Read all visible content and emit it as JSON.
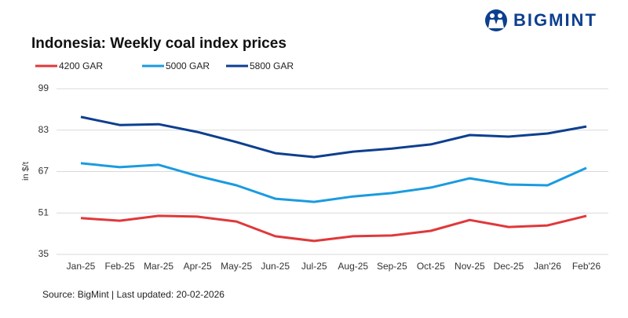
{
  "logo": "BIGMINT",
  "chart_data": {
    "type": "line",
    "title": "Indonesia: Weekly coal index prices",
    "y_label": "in $/t",
    "source": "Source: BigMint | Last updated: 20-02-2026",
    "categories": [
      "Jan-25",
      "Feb-25",
      "Mar-25",
      "Apr-25",
      "May-25",
      "Jun-25",
      "Jul-25",
      "Aug-25",
      "Sep-25",
      "Oct-25",
      "Nov-25",
      "Dec-25",
      "Jan'26",
      "Feb'26"
    ],
    "series": [
      {
        "name": "4200 GAR",
        "color": "#e0383a",
        "values": [
          49.0,
          48.0,
          49.9,
          49.6,
          47.7,
          42.0,
          40.2,
          42.0,
          42.3,
          44.1,
          48.3,
          45.6,
          46.2,
          49.9
        ]
      },
      {
        "name": "5000 GAR",
        "color": "#1a9be0",
        "values": [
          70.2,
          68.7,
          69.6,
          65.3,
          61.7,
          56.5,
          55.3,
          57.4,
          58.7,
          60.8,
          64.4,
          62.0,
          61.7,
          68.4
        ]
      },
      {
        "name": "5800 GAR",
        "color": "#0d3f8f",
        "values": [
          88.1,
          85.0,
          85.3,
          82.3,
          78.4,
          74.1,
          72.6,
          74.7,
          75.9,
          77.5,
          81.1,
          80.5,
          81.7,
          84.4
        ]
      }
    ],
    "ylim": [
      35,
      99
    ],
    "yticks": [
      35,
      51,
      67,
      83,
      99
    ],
    "grid": true
  }
}
